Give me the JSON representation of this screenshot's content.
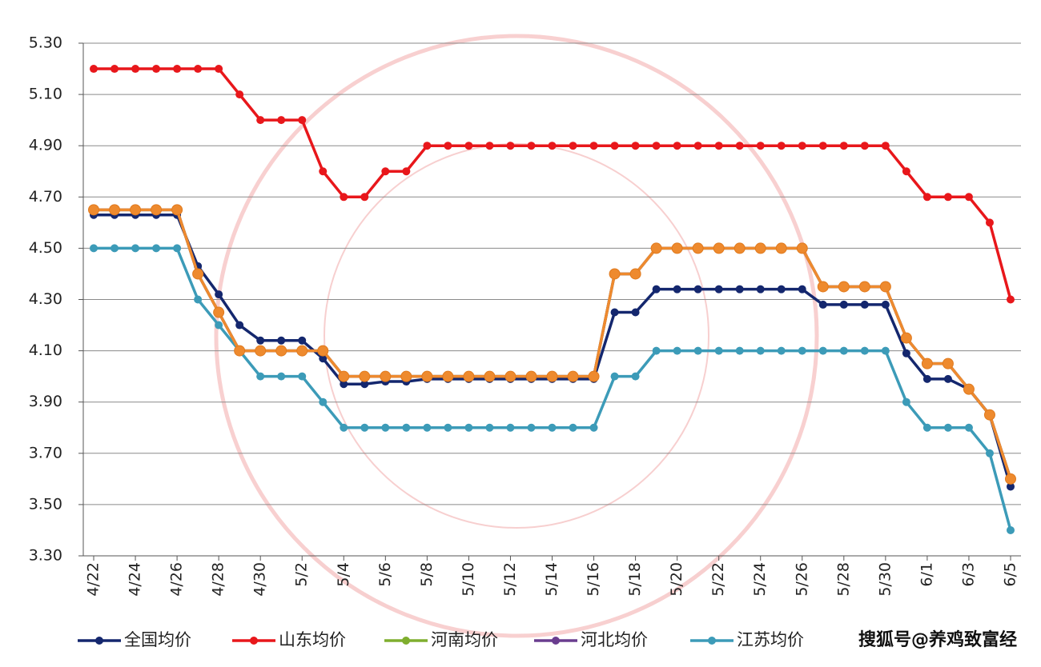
{
  "chart_data": {
    "type": "line",
    "categories": [
      "4/22",
      null,
      "4/24",
      null,
      "4/26",
      null,
      "4/28",
      null,
      "4/30",
      null,
      "5/2",
      null,
      "5/4",
      null,
      "5/6",
      null,
      "5/8",
      null,
      "5/10",
      null,
      "5/12",
      null,
      "5/14",
      null,
      "5/16",
      null,
      "5/18",
      null,
      "5/20",
      null,
      "5/22",
      null,
      "5/24",
      null,
      "5/26",
      null,
      "5/28",
      null,
      "5/30",
      null,
      "6/1",
      null,
      "6/3",
      null,
      "6/5"
    ],
    "series": [
      {
        "name": "河南均价",
        "color": "#7fae2e",
        "values": [
          4.65,
          4.65,
          4.65,
          4.65,
          4.65,
          4.4,
          4.25,
          4.1,
          4.1,
          4.1,
          4.1,
          4.1,
          4.0,
          4.0,
          4.0,
          4.0,
          4.0,
          4.0,
          4.0,
          4.0,
          4.0,
          4.0,
          4.0,
          4.0,
          4.0,
          4.4,
          4.4,
          4.5,
          4.5,
          4.5,
          4.5,
          4.5,
          4.5,
          4.5,
          4.5,
          4.35,
          4.35,
          4.35,
          4.35,
          4.15,
          4.05,
          4.05,
          3.95,
          3.85,
          3.6
        ]
      },
      {
        "name": "河北均价",
        "color": "#6a3d8f",
        "values": [
          4.65,
          4.65,
          4.65,
          4.65,
          4.65,
          4.4,
          4.25,
          4.1,
          4.1,
          4.1,
          4.1,
          4.1,
          4.0,
          4.0,
          4.0,
          4.0,
          4.0,
          4.0,
          4.0,
          4.0,
          4.0,
          4.0,
          4.0,
          4.0,
          4.0,
          4.4,
          4.4,
          4.5,
          4.5,
          4.5,
          4.5,
          4.5,
          4.5,
          4.5,
          4.5,
          4.35,
          4.35,
          4.35,
          4.35,
          4.15,
          4.05,
          4.05,
          3.95,
          3.85,
          3.6
        ]
      },
      {
        "name": "全国均价",
        "color": "#14276e",
        "values": [
          4.63,
          4.63,
          4.63,
          4.63,
          4.63,
          4.43,
          4.32,
          4.2,
          4.14,
          4.14,
          4.14,
          4.07,
          3.97,
          3.97,
          3.98,
          3.98,
          3.99,
          3.99,
          3.99,
          3.99,
          3.99,
          3.99,
          3.99,
          3.99,
          3.99,
          4.25,
          4.25,
          4.34,
          4.34,
          4.34,
          4.34,
          4.34,
          4.34,
          4.34,
          4.34,
          4.28,
          4.28,
          4.28,
          4.28,
          4.09,
          3.99,
          3.99,
          3.95,
          3.85,
          3.57
        ]
      },
      {
        "name": "江苏均价",
        "color": "#3c9bb8",
        "values": [
          4.5,
          4.5,
          4.5,
          4.5,
          4.5,
          4.3,
          4.2,
          4.1,
          4.0,
          4.0,
          4.0,
          3.9,
          3.8,
          3.8,
          3.8,
          3.8,
          3.8,
          3.8,
          3.8,
          3.8,
          3.8,
          3.8,
          3.8,
          3.8,
          3.8,
          4.0,
          4.0,
          4.1,
          4.1,
          4.1,
          4.1,
          4.1,
          4.1,
          4.1,
          4.1,
          4.1,
          4.1,
          4.1,
          4.1,
          3.9,
          3.8,
          3.8,
          3.8,
          3.7,
          3.4
        ]
      },
      {
        "color": "#ee8a2e",
        "values": [
          4.65,
          4.65,
          4.65,
          4.65,
          4.65,
          4.4,
          4.25,
          4.1,
          4.1,
          4.1,
          4.1,
          4.1,
          4.0,
          4.0,
          4.0,
          4.0,
          4.0,
          4.0,
          4.0,
          4.0,
          4.0,
          4.0,
          4.0,
          4.0,
          4.0,
          4.4,
          4.4,
          4.5,
          4.5,
          4.5,
          4.5,
          4.5,
          4.5,
          4.5,
          4.5,
          4.35,
          4.35,
          4.35,
          4.35,
          4.15,
          4.05,
          4.05,
          3.95,
          3.85,
          3.6
        ]
      },
      {
        "name": "山东均价",
        "color": "#e8171b",
        "values": [
          5.2,
          5.2,
          5.2,
          5.2,
          5.2,
          5.2,
          5.2,
          5.1,
          5.0,
          5.0,
          5.0,
          4.8,
          4.7,
          4.7,
          4.8,
          4.8,
          4.9,
          4.9,
          4.9,
          4.9,
          4.9,
          4.9,
          4.9,
          4.9,
          4.9,
          4.9,
          4.9,
          4.9,
          4.9,
          4.9,
          4.9,
          4.9,
          4.9,
          4.9,
          4.9,
          4.9,
          4.9,
          4.9,
          4.9,
          4.8,
          4.7,
          4.7,
          4.7,
          4.6,
          4.3
        ]
      }
    ],
    "legend_order": [
      2,
      5,
      0,
      1,
      3
    ],
    "ylim": [
      3.3,
      5.3
    ],
    "yticks": [
      {
        "value": 3.3,
        "label": "3.30"
      },
      {
        "value": 3.5,
        "label": "3.50"
      },
      {
        "value": 3.7,
        "label": "3.70"
      },
      {
        "value": 3.9,
        "label": "3.90"
      },
      {
        "value": 4.1,
        "label": "4.10"
      },
      {
        "value": 4.3,
        "label": "4.30"
      },
      {
        "value": 4.5,
        "label": "4.50"
      },
      {
        "value": 4.7,
        "label": "4.70"
      },
      {
        "value": 4.9,
        "label": "4.90"
      },
      {
        "value": 5.1,
        "label": "5.10"
      },
      {
        "value": 5.3,
        "label": "5.30"
      }
    ],
    "grid": true,
    "watermark": "搜狐号@养鸡致富经"
  }
}
